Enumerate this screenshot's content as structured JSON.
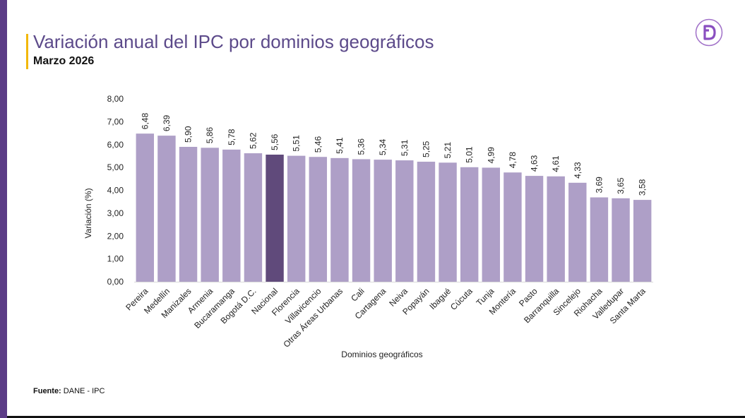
{
  "header": {
    "title": "Variación anual del IPC por dominios geográficos",
    "subtitle": "Marzo 2026"
  },
  "footer": {
    "source_label": "Fuente:",
    "source_value": " DANE - IPC"
  },
  "logo": {
    "icon": "dane-logo-icon",
    "letter": "D"
  },
  "colors": {
    "bar": "#ae9fc7",
    "bar_highlight": "#604a7b",
    "accent": "#f2b705",
    "stripe": "#5b3c86",
    "title": "#5c4a8a"
  },
  "chart_data": {
    "type": "bar",
    "title": "Variación anual del IPC por dominios geográficos",
    "xlabel": "Dominios geográficos",
    "ylabel": "Variación (%)",
    "ylim": [
      0,
      8
    ],
    "ytick_step": 1,
    "ytick_labels": [
      "0,00",
      "1,00",
      "2,00",
      "3,00",
      "4,00",
      "5,00",
      "6,00",
      "7,00",
      "8,00"
    ],
    "grid": false,
    "highlight": "Nacional",
    "categories": [
      "Pereira",
      "Medellín",
      "Manizales",
      "Armenia",
      "Bucaramanga",
      "Bogotá D.C.",
      "Nacional",
      "Florencia",
      "Villavicencio",
      "Otras Áreas Urbanas",
      "Cali",
      "Cartagena",
      "Neiva",
      "Popayán",
      "Ibagué",
      "Cúcuta",
      "Tunja",
      "Montería",
      "Pasto",
      "Barranquilla",
      "Sincelejo",
      "Riohacha",
      "Valledupar",
      "Santa Marta"
    ],
    "values": [
      6.48,
      6.39,
      5.9,
      5.86,
      5.78,
      5.62,
      5.56,
      5.51,
      5.46,
      5.41,
      5.36,
      5.34,
      5.31,
      5.25,
      5.21,
      5.01,
      4.99,
      4.78,
      4.63,
      4.61,
      4.33,
      3.69,
      3.65,
      3.58
    ],
    "labels": [
      "6,48",
      "6,39",
      "5,90",
      "5,86",
      "5,78",
      "5,62",
      "5,56",
      "5,51",
      "5,46",
      "5,41",
      "5,36",
      "5,34",
      "5,31",
      "5,25",
      "5,21",
      "5,01",
      "4,99",
      "4,78",
      "4,63",
      "4,61",
      "4,33",
      "3,69",
      "3,65",
      "3,58"
    ]
  }
}
